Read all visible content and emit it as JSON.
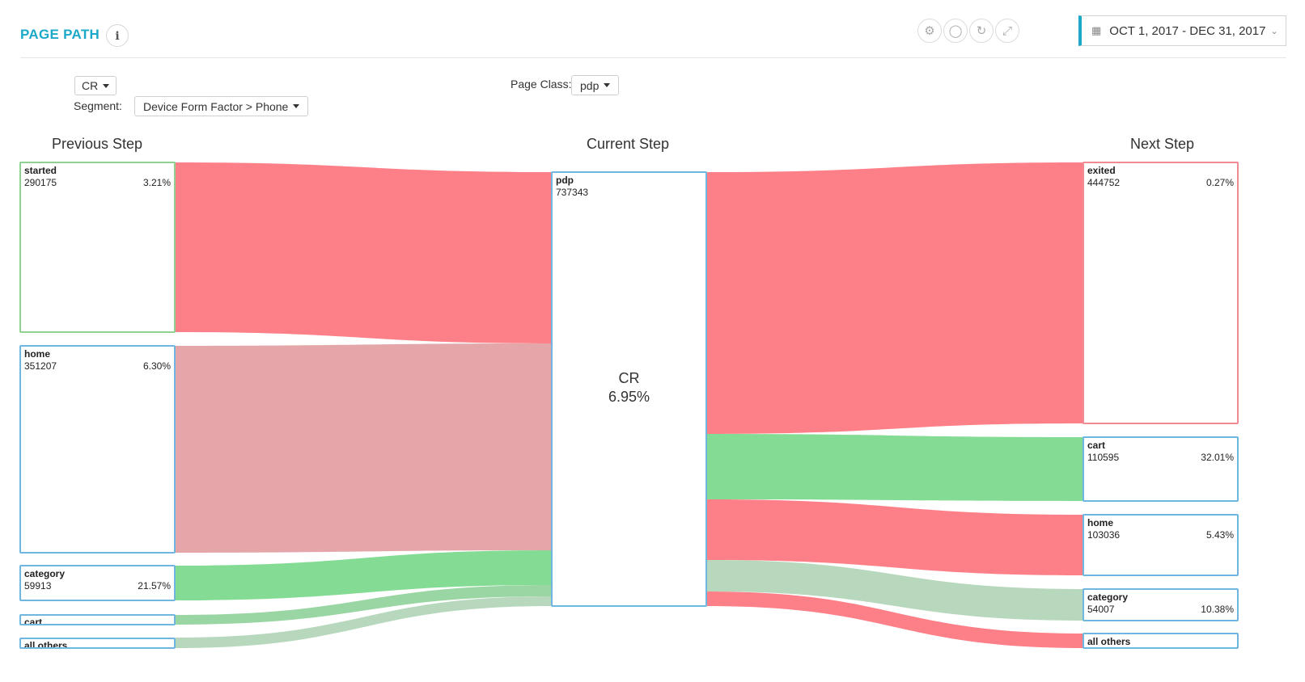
{
  "header": {
    "title": "PAGE PATH",
    "info_icon": "i",
    "date_range": "OCT 1, 2017 - DEC 31, 2017"
  },
  "toolbar": {
    "icons": [
      "gear-icon",
      "comment-icon",
      "refresh-icon",
      "expand-icon"
    ]
  },
  "filters": {
    "metric": "CR",
    "page_class_label": "Page Class:",
    "page_class": "pdp",
    "segment_label": "Segment:",
    "segment": "Device Form Factor > Phone"
  },
  "columns": {
    "previous": "Previous Step",
    "current": "Current Step",
    "next": "Next Step"
  },
  "previous_steps": [
    {
      "name": "started",
      "count": "290175",
      "pct": "3.21%"
    },
    {
      "name": "home",
      "count": "351207",
      "pct": "6.30%"
    },
    {
      "name": "category",
      "count": "59913",
      "pct": "21.57%"
    },
    {
      "name": "cart",
      "count": "",
      "pct": ""
    },
    {
      "name": "all others",
      "count": "",
      "pct": ""
    }
  ],
  "current_step": {
    "name": "pdp",
    "count": "737343",
    "metric": "CR",
    "value": "6.95%"
  },
  "next_steps": [
    {
      "name": "exited",
      "count": "444752",
      "pct": "0.27%"
    },
    {
      "name": "cart",
      "count": "110595",
      "pct": "32.01%"
    },
    {
      "name": "home",
      "count": "103036",
      "pct": "5.43%"
    },
    {
      "name": "category",
      "count": "54007",
      "pct": "10.38%"
    },
    {
      "name": "all others",
      "count": "",
      "pct": ""
    }
  ],
  "colors": {
    "accent": "#1ba8c9",
    "flow_red": "#fd8088",
    "flow_pink": "#e5a6a9",
    "flow_green": "#84dc94",
    "flow_light_green": "#b7d8bd"
  }
}
